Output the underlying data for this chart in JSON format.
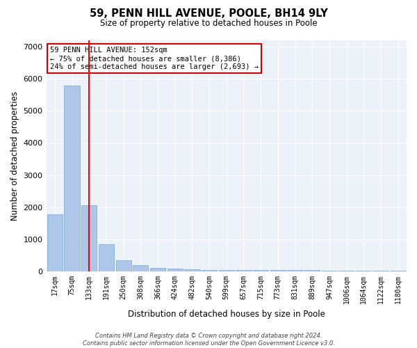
{
  "title": "59, PENN HILL AVENUE, POOLE, BH14 9LY",
  "subtitle": "Size of property relative to detached houses in Poole",
  "xlabel": "Distribution of detached houses by size in Poole",
  "ylabel": "Number of detached properties",
  "categories": [
    "17sqm",
    "75sqm",
    "133sqm",
    "191sqm",
    "250sqm",
    "308sqm",
    "366sqm",
    "424sqm",
    "482sqm",
    "540sqm",
    "599sqm",
    "657sqm",
    "715sqm",
    "773sqm",
    "831sqm",
    "889sqm",
    "947sqm",
    "1006sqm",
    "1064sqm",
    "1122sqm",
    "1180sqm"
  ],
  "values": [
    1780,
    5780,
    2050,
    840,
    340,
    200,
    105,
    90,
    60,
    55,
    50,
    48,
    45,
    43,
    40,
    38,
    36,
    35,
    33,
    31,
    30
  ],
  "bar_color": "#aec6e8",
  "bar_edge_color": "#7aafd4",
  "red_line_x": 2,
  "annotation_line1": "59 PENN HILL AVENUE: 152sqm",
  "annotation_line2": "← 75% of detached houses are smaller (8,386)",
  "annotation_line3": "24% of semi-detached houses are larger (2,693) →",
  "annotation_box_color": "#ffffff",
  "annotation_box_edge_color": "#cc0000",
  "ylim": [
    0,
    7200
  ],
  "yticks": [
    0,
    1000,
    2000,
    3000,
    4000,
    5000,
    6000,
    7000
  ],
  "bg_color": "#edf2f9",
  "grid_color": "#ffffff",
  "footer1": "Contains HM Land Registry data © Crown copyright and database right 2024.",
  "footer2": "Contains public sector information licensed under the Open Government Licence v3.0."
}
